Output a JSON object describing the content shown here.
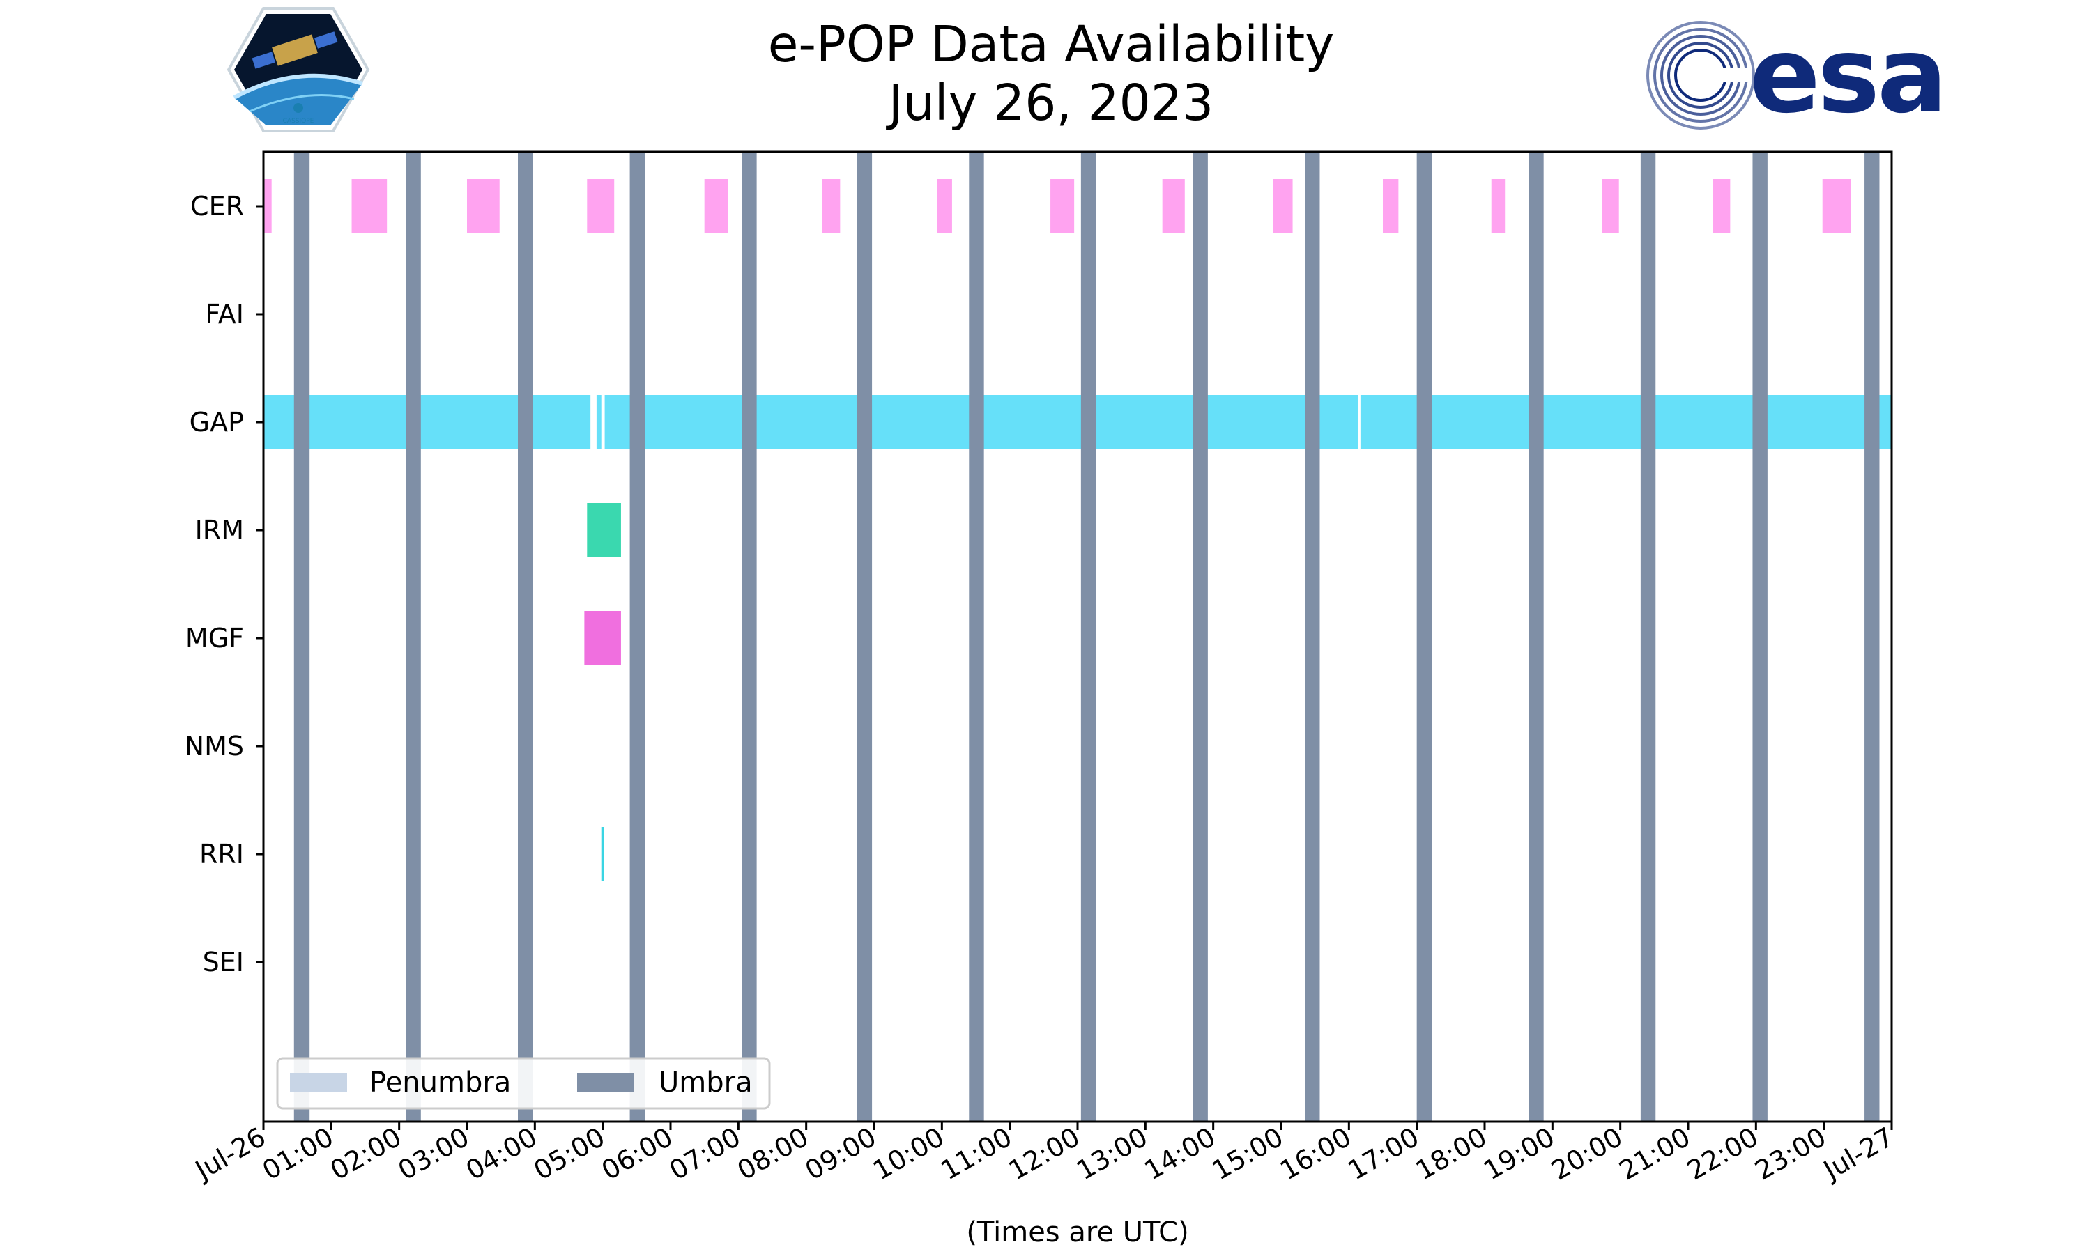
{
  "colors": {
    "CER": "#ff99ee",
    "FAI": "#f5a623",
    "GAP": "#55ddf8",
    "IRM": "#25d4a6",
    "MGF": "#ee5fdb",
    "NMS": "#b5e61d",
    "RRI": "#25d0e0",
    "SEI": "#7b68ee",
    "umbra": "#7f8fa6",
    "penumbra": "#c8d5e6"
  },
  "logos": {
    "cassiope_label": "CASSIOPE",
    "esa_label": "esa"
  },
  "chart_data": {
    "type": "timeline",
    "title": "e-POP Data Availability",
    "subtitle": "July 26, 2023",
    "xlabel": "(Times are UTC)",
    "xlim_hours": [
      0,
      24
    ],
    "xtick_labels": [
      "Jul-26",
      "01:00",
      "02:00",
      "03:00",
      "04:00",
      "05:00",
      "06:00",
      "07:00",
      "08:00",
      "09:00",
      "10:00",
      "11:00",
      "12:00",
      "13:00",
      "14:00",
      "15:00",
      "16:00",
      "17:00",
      "18:00",
      "19:00",
      "20:00",
      "21:00",
      "22:00",
      "23:00",
      "Jul-27"
    ],
    "instruments": [
      "CER",
      "FAI",
      "GAP",
      "IRM",
      "MGF",
      "NMS",
      "RRI",
      "SEI"
    ],
    "intervals": {
      "CER": [
        [
          0.0,
          0.12
        ],
        [
          1.3,
          1.82
        ],
        [
          3.0,
          3.48
        ],
        [
          4.77,
          5.17
        ],
        [
          6.5,
          6.85
        ],
        [
          8.23,
          8.5
        ],
        [
          9.93,
          10.15
        ],
        [
          11.6,
          11.95
        ],
        [
          13.25,
          13.58
        ],
        [
          14.88,
          15.17
        ],
        [
          16.5,
          16.73
        ],
        [
          18.1,
          18.3
        ],
        [
          19.73,
          19.98
        ],
        [
          21.37,
          21.62
        ],
        [
          22.98,
          23.4
        ]
      ],
      "FAI": [],
      "GAP": [
        [
          0.0,
          4.82
        ],
        [
          4.91,
          4.98
        ],
        [
          5.03,
          16.13
        ],
        [
          16.17,
          24.0
        ]
      ],
      "IRM": [
        [
          4.77,
          5.27
        ]
      ],
      "MGF": [
        [
          4.73,
          5.27
        ]
      ],
      "NMS": [],
      "RRI": [
        [
          4.98,
          5.02
        ]
      ],
      "SEI": []
    },
    "umbra_intervals": [
      [
        0.45,
        0.68
      ],
      [
        2.1,
        2.32
      ],
      [
        3.75,
        3.97
      ],
      [
        5.4,
        5.62
      ],
      [
        7.05,
        7.27
      ],
      [
        8.75,
        8.97
      ],
      [
        10.4,
        10.62
      ],
      [
        12.05,
        12.27
      ],
      [
        13.7,
        13.92
      ],
      [
        15.35,
        15.57
      ],
      [
        17.0,
        17.22
      ],
      [
        18.65,
        18.87
      ],
      [
        20.3,
        20.52
      ],
      [
        21.95,
        22.17
      ],
      [
        23.6,
        23.82
      ]
    ],
    "penumbra_intervals": [],
    "legend": {
      "position": "lower-left",
      "entries": [
        "Penumbra",
        "Umbra"
      ]
    }
  }
}
